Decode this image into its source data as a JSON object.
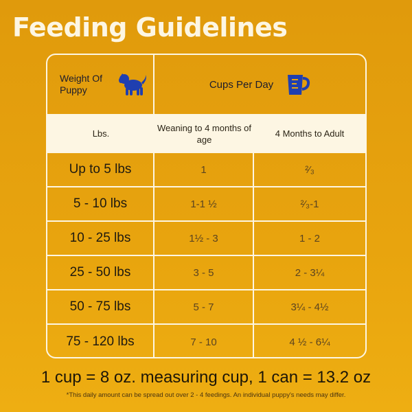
{
  "title": "Feeding Guidelines",
  "header": {
    "weight_label": "Weight Of Puppy",
    "cups_label": "Cups Per Day",
    "icons": {
      "puppy": "puppy-silhouette-icon",
      "cup": "measuring-cup-icon"
    },
    "icon_color": "#1f3fb0"
  },
  "subheader": {
    "col1": "Lbs.",
    "col2": "Weaning to 4 months of age",
    "col3": "4 Months to Adult"
  },
  "rows": [
    {
      "weight": "Up to 5 lbs",
      "weaning": "1",
      "adult": "²⁄₃"
    },
    {
      "weight": "5 - 10 lbs",
      "weaning": "1-1 ½",
      "adult": "²⁄₃-1"
    },
    {
      "weight": "10 - 25 lbs",
      "weaning": "1½ - 3",
      "adult": "1 - 2"
    },
    {
      "weight": "25 - 50 lbs",
      "weaning": "3 - 5",
      "adult": "2 - 3¼"
    },
    {
      "weight": "50 - 75 lbs",
      "weaning": "5 - 7",
      "adult": "3¼ - 4½"
    },
    {
      "weight": "75 - 120 lbs",
      "weaning": "7 - 10",
      "adult": "4 ½ - 6¼"
    }
  ],
  "footer": {
    "measure": "1 cup = 8 oz. measuring cup, 1 can = 13.2 oz",
    "note": "*This daily amount can be spread out over 2 - 4 feedings. An individual puppy's needs may differ."
  },
  "colors": {
    "background": "#e8a40e",
    "cream": "#fdf6e3"
  }
}
